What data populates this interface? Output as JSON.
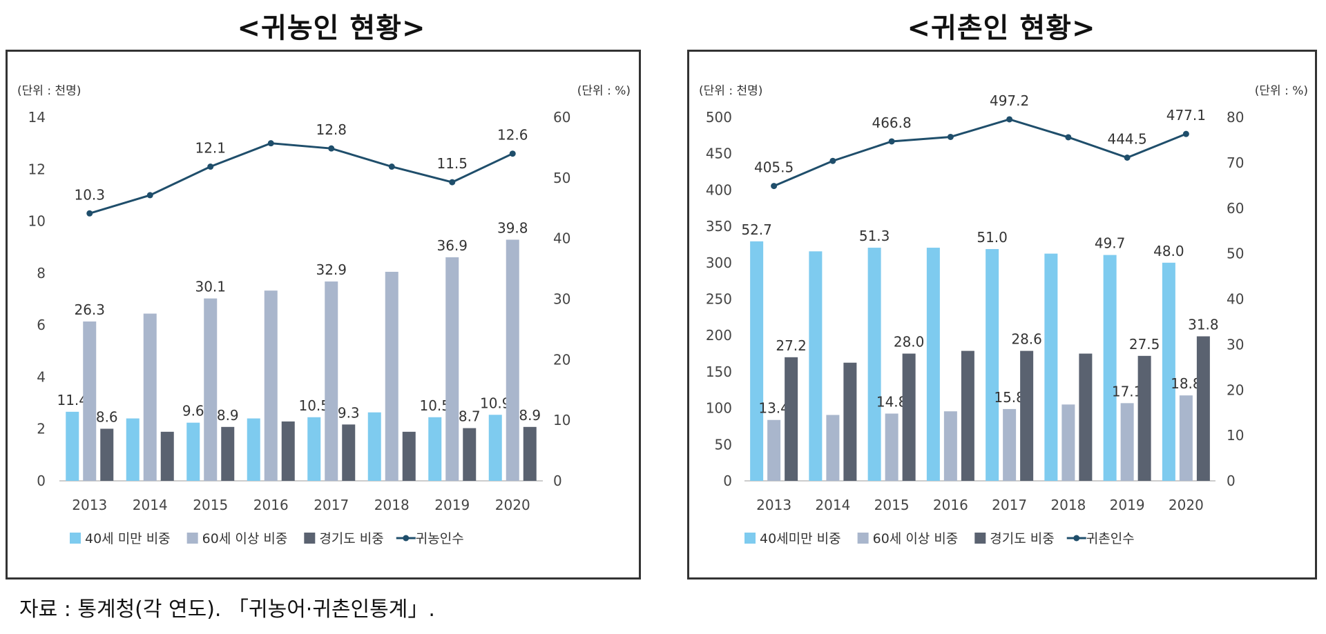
{
  "source_note": "자료 : 통계청(각 연도). 「귀농어·귀촌인통계」.",
  "chart_data": [
    {
      "type": "bar",
      "title": "<귀농인 현황>",
      "unit_left": "(단위 : 천명)",
      "unit_right": "(단위 : %)",
      "categories": [
        "2013",
        "2014",
        "2015",
        "2016",
        "2017",
        "2018",
        "2019",
        "2020"
      ],
      "ylim_left": [
        0,
        14
      ],
      "yticks_left": [
        0,
        2,
        4,
        6,
        8,
        10,
        12,
        14
      ],
      "ylim_right": [
        0,
        60
      ],
      "yticks_right": [
        0,
        10,
        20,
        30,
        40,
        50,
        60
      ],
      "grid": false,
      "legend_position": "bottom",
      "series": [
        {
          "name": "40세 미만 비중",
          "kind": "bar",
          "axis": "right",
          "color": "#7ecbef",
          "values": [
            11.4,
            10.3,
            9.6,
            10.3,
            10.5,
            11.3,
            10.5,
            10.9
          ],
          "labels": [
            "11.4",
            "",
            "9.6",
            "",
            "10.5",
            "",
            "10.5",
            "10.9"
          ]
        },
        {
          "name": "60세 이상 비중",
          "kind": "bar",
          "axis": "right",
          "color": "#a9b6cc",
          "values": [
            26.3,
            27.6,
            30.1,
            31.4,
            32.9,
            34.5,
            36.9,
            39.8
          ],
          "labels": [
            "26.3",
            "",
            "30.1",
            "",
            "32.9",
            "",
            "36.9",
            "39.8"
          ]
        },
        {
          "name": "경기도 비중",
          "kind": "bar",
          "axis": "right",
          "color": "#5a6270",
          "values": [
            8.6,
            8.1,
            8.9,
            9.8,
            9.3,
            8.1,
            8.7,
            8.9
          ],
          "labels": [
            "8.6",
            "",
            "8.9",
            "",
            "9.3",
            "",
            "8.7",
            "8.9"
          ]
        },
        {
          "name": "귀농인수",
          "kind": "line",
          "axis": "left",
          "color": "#1f4e6b",
          "values": [
            10.3,
            11.0,
            12.1,
            13.0,
            12.8,
            12.1,
            11.5,
            12.6
          ],
          "labels": [
            "10.3",
            "",
            "12.1",
            "",
            "12.8",
            "",
            "11.5",
            "12.6"
          ]
        }
      ]
    },
    {
      "type": "bar",
      "title": "<귀촌인 현황>",
      "unit_left": "(단위 : 천명)",
      "unit_right": "(단위 : %)",
      "categories": [
        "2013",
        "2014",
        "2015",
        "2016",
        "2017",
        "2018",
        "2019",
        "2020"
      ],
      "ylim_left": [
        0,
        500
      ],
      "yticks_left": [
        0,
        50,
        100,
        150,
        200,
        250,
        300,
        350,
        400,
        450,
        500
      ],
      "ylim_right": [
        0,
        80
      ],
      "yticks_right": [
        0,
        10,
        20,
        30,
        40,
        50,
        60,
        70,
        80
      ],
      "grid": false,
      "legend_position": "bottom",
      "series": [
        {
          "name": "40세미만 비중",
          "kind": "bar",
          "axis": "right",
          "color": "#7ecbef",
          "values": [
            52.7,
            50.5,
            51.3,
            51.3,
            51.0,
            50.0,
            49.7,
            48.0
          ],
          "labels": [
            "52.7",
            "",
            "51.3",
            "",
            "51.0",
            "",
            "49.7",
            "48.0"
          ]
        },
        {
          "name": "60세 이상 비중",
          "kind": "bar",
          "axis": "right",
          "color": "#a9b6cc",
          "values": [
            13.4,
            14.5,
            14.8,
            15.3,
            15.8,
            16.8,
            17.1,
            18.8
          ],
          "labels": [
            "13.4",
            "",
            "14.8",
            "",
            "15.8",
            "",
            "17.1",
            "18.8"
          ]
        },
        {
          "name": "경기도 비중",
          "kind": "bar",
          "axis": "right",
          "color": "#5a6270",
          "values": [
            27.2,
            26.0,
            28.0,
            28.6,
            28.6,
            28.0,
            27.5,
            31.8
          ],
          "labels": [
            "27.2",
            "",
            "28.0",
            "",
            "28.6",
            "",
            "27.5",
            "31.8"
          ]
        },
        {
          "name": "귀촌인수",
          "kind": "line",
          "axis": "left",
          "color": "#1f4e6b",
          "values": [
            405.5,
            440.0,
            466.8,
            473.0,
            497.2,
            472.5,
            444.5,
            477.1
          ],
          "labels": [
            "405.5",
            "",
            "466.8",
            "",
            "497.2",
            "",
            "444.5",
            "477.1"
          ]
        }
      ]
    }
  ]
}
